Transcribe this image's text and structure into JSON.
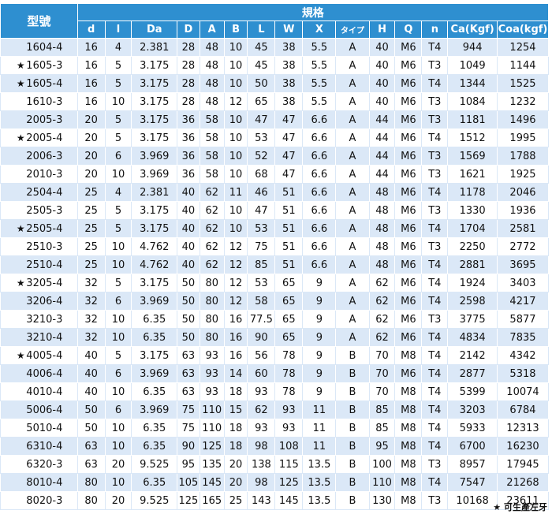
{
  "table": {
    "model_header": "型號",
    "spec_header": "規格",
    "columns": [
      "d",
      "l",
      "Da",
      "D",
      "A",
      "B",
      "L",
      "W",
      "X",
      "タイプ",
      "H",
      "Q",
      "n",
      "Ca(Kgf)",
      "Coa(kgf)"
    ],
    "star_symbol": "★",
    "rows": [
      {
        "star": false,
        "model": "1604-4",
        "values": [
          "16",
          "4",
          "2.381",
          "28",
          "48",
          "10",
          "45",
          "38",
          "5.5",
          "A",
          "40",
          "M6",
          "T4",
          "944",
          "1254"
        ]
      },
      {
        "star": true,
        "model": "1605-3",
        "values": [
          "16",
          "5",
          "3.175",
          "28",
          "48",
          "10",
          "45",
          "38",
          "5.5",
          "A",
          "40",
          "M6",
          "T3",
          "1049",
          "1144"
        ]
      },
      {
        "star": true,
        "model": "1605-4",
        "values": [
          "16",
          "5",
          "3.175",
          "28",
          "48",
          "10",
          "50",
          "38",
          "5.5",
          "A",
          "40",
          "M6",
          "T4",
          "1344",
          "1525"
        ]
      },
      {
        "star": false,
        "model": "1610-3",
        "values": [
          "16",
          "10",
          "3.175",
          "28",
          "48",
          "12",
          "65",
          "38",
          "5.5",
          "A",
          "40",
          "M6",
          "T3",
          "1084",
          "1232"
        ]
      },
      {
        "star": false,
        "model": "2005-3",
        "values": [
          "20",
          "5",
          "3.175",
          "36",
          "58",
          "10",
          "47",
          "47",
          "6.6",
          "A",
          "44",
          "M6",
          "T3",
          "1181",
          "1496"
        ]
      },
      {
        "star": true,
        "model": "2005-4",
        "values": [
          "20",
          "5",
          "3.175",
          "36",
          "58",
          "10",
          "53",
          "47",
          "6.6",
          "A",
          "44",
          "M6",
          "T4",
          "1512",
          "1995"
        ]
      },
      {
        "star": false,
        "model": "2006-3",
        "values": [
          "20",
          "6",
          "3.969",
          "36",
          "58",
          "10",
          "52",
          "47",
          "6.6",
          "A",
          "44",
          "M6",
          "T3",
          "1569",
          "1788"
        ]
      },
      {
        "star": false,
        "model": "2010-3",
        "values": [
          "20",
          "10",
          "3.969",
          "36",
          "58",
          "10",
          "68",
          "47",
          "6.6",
          "A",
          "44",
          "M6",
          "T3",
          "1621",
          "1925"
        ]
      },
      {
        "star": false,
        "model": "2504-4",
        "values": [
          "25",
          "4",
          "2.381",
          "40",
          "62",
          "11",
          "46",
          "51",
          "6.6",
          "A",
          "48",
          "M6",
          "T4",
          "1178",
          "2046"
        ]
      },
      {
        "star": false,
        "model": "2505-3",
        "values": [
          "25",
          "5",
          "3.175",
          "40",
          "62",
          "10",
          "47",
          "51",
          "6.6",
          "A",
          "48",
          "M6",
          "T3",
          "1330",
          "1936"
        ]
      },
      {
        "star": true,
        "model": "2505-4",
        "values": [
          "25",
          "5",
          "3.175",
          "40",
          "62",
          "10",
          "53",
          "51",
          "6.6",
          "A",
          "48",
          "M6",
          "T4",
          "1704",
          "2581"
        ]
      },
      {
        "star": false,
        "model": "2510-3",
        "values": [
          "25",
          "10",
          "4.762",
          "40",
          "62",
          "12",
          "75",
          "51",
          "6.6",
          "A",
          "48",
          "M6",
          "T3",
          "2250",
          "2772"
        ]
      },
      {
        "star": false,
        "model": "2510-4",
        "values": [
          "25",
          "10",
          "4.762",
          "40",
          "62",
          "12",
          "85",
          "51",
          "6.6",
          "A",
          "48",
          "M6",
          "T4",
          "2881",
          "3695"
        ]
      },
      {
        "star": true,
        "model": "3205-4",
        "values": [
          "32",
          "5",
          "3.175",
          "50",
          "80",
          "12",
          "53",
          "65",
          "9",
          "A",
          "62",
          "M6",
          "T4",
          "1924",
          "3403"
        ]
      },
      {
        "star": false,
        "model": "3206-4",
        "values": [
          "32",
          "6",
          "3.969",
          "50",
          "80",
          "12",
          "58",
          "65",
          "9",
          "A",
          "62",
          "M6",
          "T4",
          "2598",
          "4217"
        ]
      },
      {
        "star": false,
        "model": "3210-3",
        "values": [
          "32",
          "10",
          "6.35",
          "50",
          "80",
          "16",
          "77.5",
          "65",
          "9",
          "A",
          "62",
          "M6",
          "T3",
          "3775",
          "5877"
        ]
      },
      {
        "star": false,
        "model": "3210-4",
        "values": [
          "32",
          "10",
          "6.35",
          "50",
          "80",
          "16",
          "90",
          "65",
          "9",
          "A",
          "62",
          "M6",
          "T4",
          "4834",
          "7835"
        ]
      },
      {
        "star": true,
        "model": "4005-4",
        "values": [
          "40",
          "5",
          "3.175",
          "63",
          "93",
          "16",
          "56",
          "78",
          "9",
          "B",
          "70",
          "M8",
          "T4",
          "2142",
          "4342"
        ]
      },
      {
        "star": false,
        "model": "4006-4",
        "values": [
          "40",
          "6",
          "3.969",
          "63",
          "93",
          "14",
          "60",
          "78",
          "9",
          "B",
          "70",
          "M6",
          "T4",
          "2877",
          "5318"
        ]
      },
      {
        "star": false,
        "model": "4010-4",
        "values": [
          "40",
          "10",
          "6.35",
          "63",
          "93",
          "18",
          "93",
          "78",
          "9",
          "B",
          "70",
          "M8",
          "T4",
          "5399",
          "10074"
        ]
      },
      {
        "star": false,
        "model": "5006-4",
        "values": [
          "50",
          "6",
          "3.969",
          "75",
          "110",
          "15",
          "62",
          "93",
          "11",
          "B",
          "85",
          "M8",
          "T4",
          "3203",
          "6784"
        ]
      },
      {
        "star": false,
        "model": "5010-4",
        "values": [
          "50",
          "10",
          "6.35",
          "75",
          "110",
          "18",
          "93",
          "93",
          "11",
          "B",
          "85",
          "M8",
          "T4",
          "5933",
          "12313"
        ]
      },
      {
        "star": false,
        "model": "6310-4",
        "values": [
          "63",
          "10",
          "6.35",
          "90",
          "125",
          "18",
          "98",
          "108",
          "11",
          "B",
          "95",
          "M8",
          "T4",
          "6700",
          "16230"
        ]
      },
      {
        "star": false,
        "model": "6320-3",
        "values": [
          "63",
          "20",
          "9.525",
          "95",
          "135",
          "20",
          "138",
          "115",
          "13.5",
          "B",
          "100",
          "M8",
          "T3",
          "8957",
          "17945"
        ]
      },
      {
        "star": false,
        "model": "8010-4",
        "values": [
          "80",
          "10",
          "6.35",
          "105",
          "145",
          "20",
          "98",
          "125",
          "13.5",
          "B",
          "110",
          "M8",
          "T4",
          "7547",
          "21268"
        ]
      },
      {
        "star": false,
        "model": "8020-3",
        "values": [
          "80",
          "20",
          "9.525",
          "125",
          "165",
          "25",
          "143",
          "145",
          "13.5",
          "B",
          "130",
          "M8",
          "T3",
          "10168",
          "23611"
        ]
      }
    ]
  },
  "footnote": "★ 可生產左牙",
  "colors": {
    "header_bg": "#2e8fd0",
    "row_alt_bg": "#dbe8f7",
    "row_bg": "#ffffff"
  }
}
